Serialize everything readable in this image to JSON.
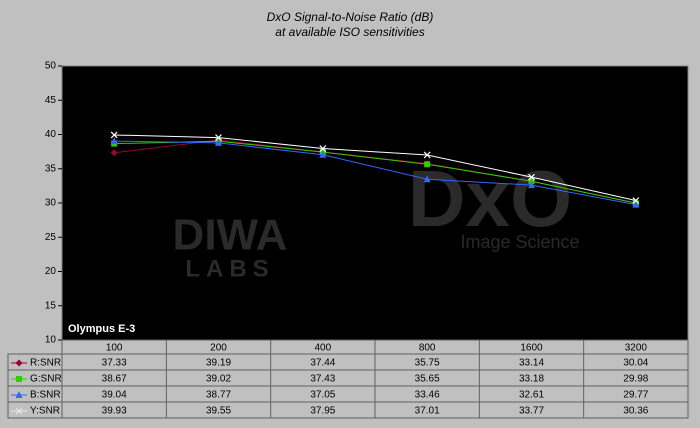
{
  "chart_data": {
    "type": "line",
    "title": "DxO Signal-to-Noise Ratio (dB)",
    "subtitle": "at available ISO sensitivities",
    "annotation": "Olympus E-3",
    "watermarks": [
      "DIWA",
      "LABS",
      "DxO",
      "Image Science"
    ],
    "categories": [
      "100",
      "200",
      "400",
      "800",
      "1600",
      "3200"
    ],
    "ylim": [
      10,
      50
    ],
    "yticks": [
      10,
      15,
      20,
      25,
      30,
      35,
      40,
      45,
      50
    ],
    "series": [
      {
        "name": "R:SNR",
        "color": "#990033",
        "marker": "diamond",
        "values": [
          37.33,
          39.19,
          37.44,
          35.75,
          33.14,
          30.04
        ]
      },
      {
        "name": "G:SNR",
        "color": "#33cc00",
        "marker": "square",
        "values": [
          38.67,
          39.02,
          37.43,
          35.65,
          33.18,
          29.98
        ]
      },
      {
        "name": "B:SNR",
        "color": "#3366ff",
        "marker": "triangle",
        "values": [
          39.04,
          38.77,
          37.05,
          33.46,
          32.61,
          29.77
        ]
      },
      {
        "name": "Y:SNR",
        "color": "#ffffff",
        "marker": "x",
        "values": [
          39.93,
          39.55,
          37.95,
          37.01,
          33.77,
          30.36
        ]
      }
    ]
  }
}
